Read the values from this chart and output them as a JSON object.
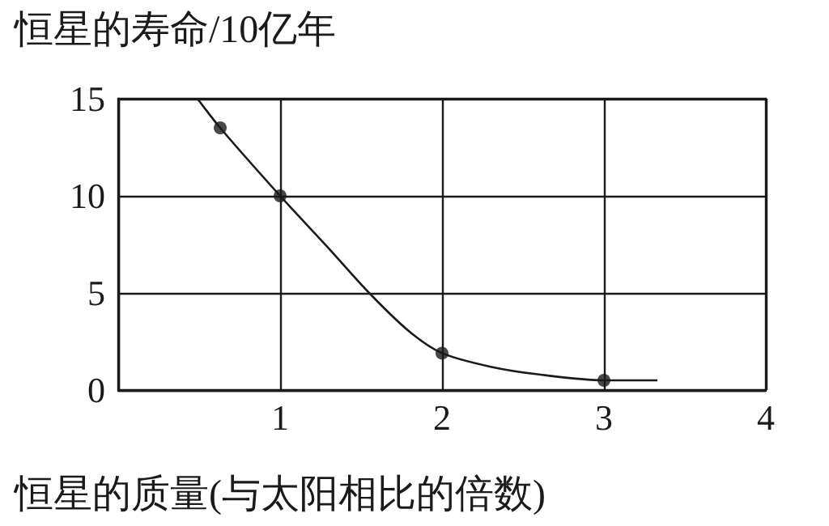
{
  "chart_data": {
    "type": "line",
    "ylabel": "恒星的寿命/10亿年",
    "xlabel": "恒星的质量(与太阳相比的倍数)",
    "series": [
      {
        "color": "#1a1a1a",
        "marker": "none",
        "x": [
          0.49,
          0.63,
          1,
          1.3,
          1.55,
          1.8,
          2,
          2.3,
          2.6,
          3,
          3.33
        ],
        "values": [
          15,
          13.5,
          10,
          7.3,
          5,
          3.0,
          1.9,
          1.2,
          0.8,
          0.5,
          0.5
        ]
      },
      {
        "type": "scatter",
        "color": "#1a1a1a",
        "marker": "circle",
        "x": [
          0.63,
          1,
          2,
          3
        ],
        "values": [
          13.5,
          10,
          1.9,
          0.5
        ]
      }
    ],
    "xlim": [
      0,
      4
    ],
    "xticks": [
      {
        "value": 0,
        "label": null
      },
      1,
      2,
      3,
      4
    ],
    "ylim": [
      0,
      15
    ],
    "yticks": [
      0,
      5,
      10,
      15
    ],
    "grid": true
  }
}
